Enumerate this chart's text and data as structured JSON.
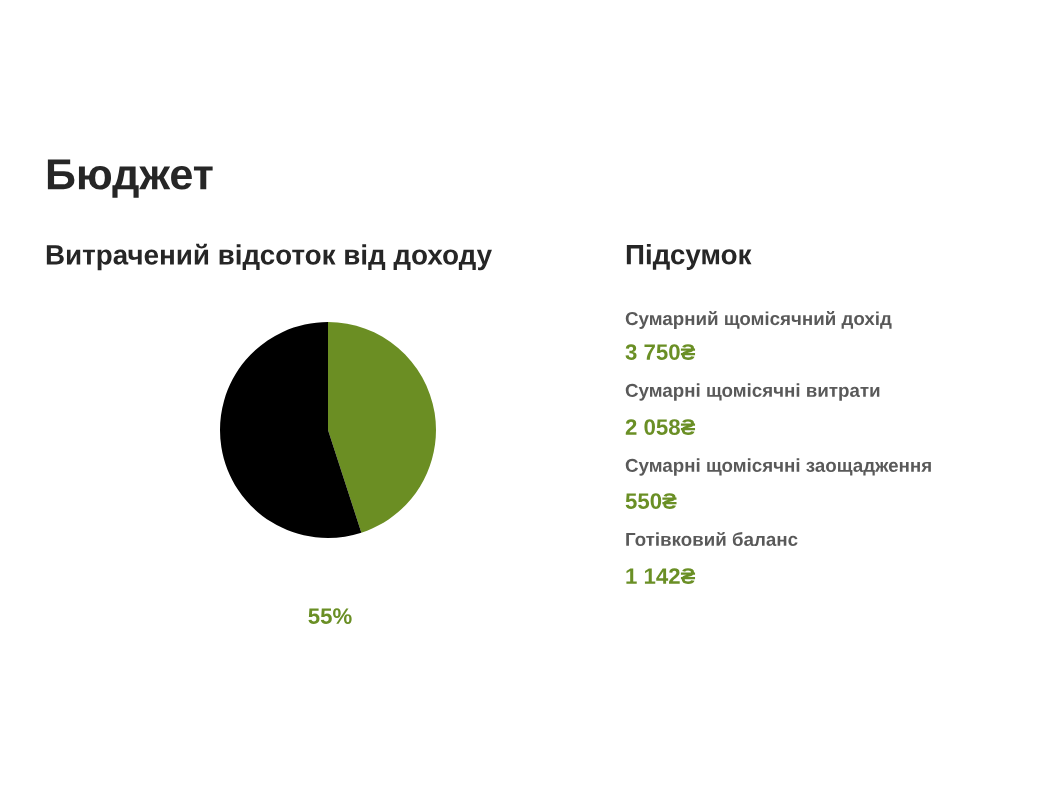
{
  "chart_data": [
    {
      "type": "pie",
      "title": "Бюджет",
      "subtitle": "Витрачений відсоток від доходу",
      "categories": [
        null,
        null
      ],
      "values": [
        45,
        55
      ],
      "colors": [
        "#6b8e23",
        "#000000"
      ],
      "value_labels": [
        null,
        "55%"
      ],
      "legend": false
    },
    {
      "type": "other",
      "title": "Підсумок",
      "annotations": [
        "Сумарний щомісячний дохід",
        "3 750₴",
        "Сумарні щомісячні витрати",
        "2 058₴",
        "Сумарні щомісячні заощадження",
        "550₴",
        "Готівковий баланс",
        "1 142₴"
      ]
    }
  ]
}
